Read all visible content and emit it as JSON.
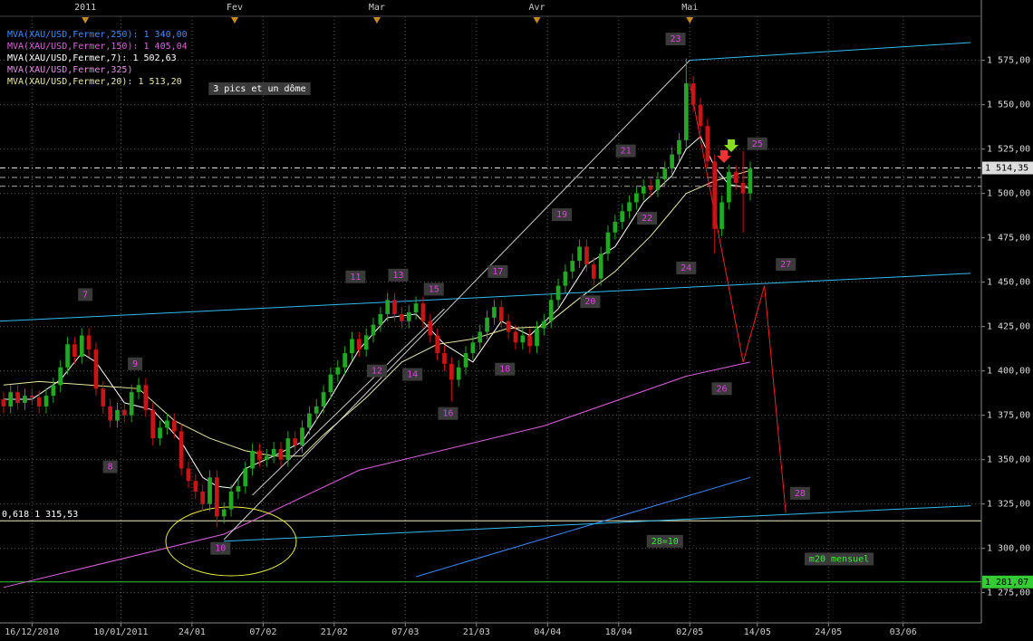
{
  "chart_data": {
    "type": "candlestick",
    "categories": [
      null,
      null,
      null,
      null,
      null,
      null,
      null,
      null,
      null,
      null,
      null,
      null,
      null,
      null,
      null,
      null,
      null,
      null,
      null,
      null,
      null,
      null,
      null,
      null,
      null,
      null,
      null,
      null,
      null,
      null,
      null,
      null,
      null,
      null,
      null,
      null,
      null,
      null,
      null,
      null,
      null,
      null,
      null,
      null,
      null,
      null,
      null,
      null,
      null,
      null,
      null,
      null,
      null,
      null,
      null,
      null,
      null,
      null,
      null,
      null,
      null,
      null,
      null,
      null,
      null,
      null,
      null,
      null,
      null,
      null,
      null,
      null,
      null,
      null,
      null,
      null,
      null,
      null,
      null,
      null,
      null,
      null,
      null,
      null,
      null,
      null,
      null,
      null,
      null,
      null,
      null,
      null,
      null,
      null,
      null,
      null,
      null,
      null,
      null,
      null,
      null,
      null,
      null,
      null,
      null,
      null
    ],
    "open": [
      1384,
      1380,
      1388,
      1382,
      1386,
      1385,
      1380,
      1386,
      1392,
      1402,
      1415,
      1408,
      1420,
      1412,
      1390,
      1380,
      1372,
      1378,
      1375,
      1388,
      1392,
      1378,
      1362,
      1368,
      1372,
      1366,
      1345,
      1338,
      1332,
      1325,
      1340,
      1318,
      1322,
      1332,
      1335,
      1345,
      1355,
      1350,
      1352,
      1356,
      1350,
      1362,
      1358,
      1368,
      1376,
      1380,
      1388,
      1398,
      1402,
      1410,
      1418,
      1412,
      1420,
      1426,
      1432,
      1440,
      1432,
      1428,
      1433,
      1438,
      1428,
      1420,
      1410,
      1404,
      1395,
      1402,
      1410,
      1416,
      1422,
      1430,
      1436,
      1428,
      1422,
      1416,
      1420,
      1414,
      1424,
      1428,
      1440,
      1448,
      1456,
      1462,
      1470,
      1460,
      1452,
      1466,
      1478,
      1484,
      1490,
      1495,
      1500,
      1504,
      1502,
      1508,
      1514,
      1522,
      1530,
      1562,
      1550,
      1538,
      1518,
      1480,
      1495,
      1512,
      1506,
      1500
    ],
    "high": [
      1388,
      1392,
      1392,
      1390,
      1390,
      1389,
      1390,
      1396,
      1406,
      1419,
      1419,
      1424,
      1424,
      1416,
      1394,
      1384,
      1382,
      1382,
      1392,
      1396,
      1396,
      1382,
      1372,
      1376,
      1376,
      1370,
      1349,
      1342,
      1336,
      1344,
      1344,
      1326,
      1336,
      1339,
      1349,
      1359,
      1359,
      1356,
      1360,
      1360,
      1366,
      1366,
      1372,
      1380,
      1384,
      1392,
      1402,
      1406,
      1414,
      1422,
      1422,
      1424,
      1430,
      1436,
      1444,
      1444,
      1436,
      1437,
      1442,
      1442,
      1432,
      1424,
      1414,
      1408,
      1406,
      1414,
      1420,
      1426,
      1434,
      1440,
      1440,
      1432,
      1426,
      1424,
      1424,
      1428,
      1432,
      1444,
      1452,
      1460,
      1466,
      1474,
      1474,
      1464,
      1470,
      1482,
      1488,
      1494,
      1499,
      1504,
      1508,
      1508,
      1512,
      1518,
      1526,
      1534,
      1576,
      1566,
      1554,
      1542,
      1522,
      1499,
      1516,
      1516,
      1524,
      1518
    ],
    "low": [
      1376,
      1376,
      1378,
      1378,
      1381,
      1376,
      1376,
      1382,
      1388,
      1398,
      1404,
      1404,
      1408,
      1386,
      1376,
      1368,
      1368,
      1371,
      1371,
      1384,
      1374,
      1358,
      1358,
      1364,
      1362,
      1341,
      1334,
      1328,
      1321,
      1321,
      1312,
      1314,
      1318,
      1328,
      1331,
      1341,
      1346,
      1346,
      1348,
      1346,
      1346,
      1354,
      1354,
      1364,
      1372,
      1376,
      1384,
      1394,
      1398,
      1406,
      1408,
      1408,
      1416,
      1422,
      1428,
      1428,
      1424,
      1424,
      1429,
      1424,
      1416,
      1406,
      1400,
      1383,
      1391,
      1398,
      1406,
      1412,
      1418,
      1426,
      1424,
      1418,
      1412,
      1412,
      1410,
      1410,
      1420,
      1424,
      1436,
      1444,
      1452,
      1458,
      1456,
      1448,
      1448,
      1462,
      1474,
      1480,
      1486,
      1491,
      1496,
      1498,
      1498,
      1504,
      1510,
      1518,
      1526,
      1546,
      1534,
      1514,
      1466,
      1476,
      1491,
      1502,
      1478,
      1496
    ],
    "close": [
      1380,
      1388,
      1382,
      1386,
      1385,
      1380,
      1386,
      1392,
      1402,
      1415,
      1408,
      1420,
      1412,
      1390,
      1380,
      1372,
      1378,
      1375,
      1388,
      1392,
      1378,
      1362,
      1368,
      1372,
      1366,
      1345,
      1338,
      1332,
      1325,
      1340,
      1318,
      1322,
      1332,
      1335,
      1345,
      1355,
      1350,
      1352,
      1356,
      1350,
      1362,
      1358,
      1368,
      1376,
      1380,
      1388,
      1398,
      1402,
      1410,
      1418,
      1412,
      1420,
      1426,
      1432,
      1440,
      1432,
      1428,
      1433,
      1438,
      1428,
      1420,
      1410,
      1404,
      1395,
      1402,
      1410,
      1416,
      1422,
      1430,
      1436,
      1428,
      1422,
      1416,
      1420,
      1414,
      1424,
      1428,
      1440,
      1448,
      1456,
      1462,
      1470,
      1460,
      1452,
      1466,
      1478,
      1484,
      1490,
      1495,
      1500,
      1504,
      1502,
      1508,
      1514,
      1522,
      1530,
      1562,
      1550,
      1538,
      1518,
      1480,
      1495,
      1512,
      1506,
      1500,
      1514
    ],
    "up_color": "#22a822",
    "down_color": "#c81414",
    "xlim": [
      -0.5,
      137.5
    ],
    "ylim": [
      1258,
      1609
    ],
    "grid": true,
    "xticks": [
      {
        "value": 4,
        "label": "16/12/2010"
      },
      {
        "value": 16.5,
        "label": "10/01/2011"
      },
      {
        "value": 26.5,
        "label": "24/01"
      },
      {
        "value": 36.5,
        "label": "07/02"
      },
      {
        "value": 46.5,
        "label": "21/02"
      },
      {
        "value": 56.5,
        "label": "07/03"
      },
      {
        "value": 66.5,
        "label": "21/03"
      },
      {
        "value": 76.5,
        "label": "04/04"
      },
      {
        "value": 86.5,
        "label": "18/04"
      },
      {
        "value": 96.5,
        "label": "02/05"
      },
      {
        "value": 106,
        "label": "14/05"
      },
      {
        "value": 116,
        "label": "24/05"
      },
      {
        "value": 126.5,
        "label": "03/06"
      }
    ],
    "top_xticks": [
      {
        "value": 11.5,
        "label": "2011"
      },
      {
        "value": 32.5,
        "label": "Fev"
      },
      {
        "value": 52.5,
        "label": "Mar"
      },
      {
        "value": 75,
        "label": "Avr"
      },
      {
        "value": 96.5,
        "label": "Mai"
      }
    ],
    "yticks": [
      {
        "value": 1275,
        "label": "1 275,00"
      },
      {
        "value": 1300,
        "label": "1 300,00"
      },
      {
        "value": 1325,
        "label": "1 325,00"
      },
      {
        "value": 1350,
        "label": "1 350,00"
      },
      {
        "value": 1375,
        "label": "1 375,00"
      },
      {
        "value": 1400,
        "label": "1 400,00"
      },
      {
        "value": 1425,
        "label": "1 425,00"
      },
      {
        "value": 1450,
        "label": "1 450,00"
      },
      {
        "value": 1475,
        "label": "1 475,00"
      },
      {
        "value": 1500,
        "label": "1 500,00"
      },
      {
        "value": 1525,
        "label": "1 525,00"
      },
      {
        "value": 1550,
        "label": "1 550,00"
      },
      {
        "value": 1575,
        "label": "1 575,00"
      }
    ],
    "series": [
      {
        "name": "MVA(XAU/USD,Fermer,250): 1 340,00",
        "color": "#3c8cff",
        "x": [
          58,
          105
        ],
        "values": [
          1284,
          1340
        ]
      },
      {
        "name": "MVA(XAU/USD,Fermer,150): 1 405,04",
        "color": "#e060e0",
        "x": [
          0,
          31,
          50,
          76,
          96,
          105
        ],
        "values": [
          1278,
          1308,
          1344,
          1369,
          1397,
          1405
        ]
      },
      {
        "name": "MVA(XAU/USD,Fermer,7): 1 502,63",
        "color": "#ffffff",
        "x": [
          0,
          4,
          8,
          11,
          13,
          17,
          21,
          25,
          28,
          30,
          32,
          34,
          38,
          42,
          46,
          50,
          54,
          58,
          62,
          66,
          70,
          74,
          78,
          82,
          86,
          90,
          94,
          96,
          98,
          100,
          102,
          105
        ],
        "values": [
          1384,
          1384,
          1395,
          1410,
          1405,
          1382,
          1378,
          1360,
          1340,
          1335,
          1334,
          1345,
          1352,
          1360,
          1385,
          1412,
          1430,
          1432,
          1415,
          1405,
          1428,
          1420,
          1435,
          1460,
          1470,
          1495,
          1510,
          1525,
          1532,
          1515,
          1505,
          1503
        ]
      },
      {
        "name": "MVA(XAU/USD,Fermer,325)",
        "color": "#e890e8",
        "x": [],
        "values": []
      },
      {
        "name": "MVA(XAU/USD,Fermer,20): 1 513,20",
        "color": "#e8e8a0",
        "x": [
          0,
          5,
          12,
          19,
          24,
          29,
          34,
          38,
          42,
          45,
          51,
          56,
          61,
          66,
          71,
          76,
          81,
          86,
          91,
          96,
          100,
          105
        ],
        "values": [
          1392,
          1394,
          1392,
          1390,
          1372,
          1362,
          1355,
          1352,
          1352,
          1364,
          1385,
          1405,
          1415,
          1418,
          1424,
          1425,
          1441,
          1456,
          1476,
          1500,
          1507,
          1513
        ]
      }
    ],
    "trendlines": [
      {
        "color": "#33bbee",
        "x": [
          -0.5,
          136
        ],
        "y": [
          1428,
          1455
        ]
      },
      {
        "color": "#33bbee",
        "x": [
          96.5,
          136
        ],
        "y": [
          1575,
          1585
        ]
      },
      {
        "color": "#33bbee",
        "x": [
          31,
          136
        ],
        "y": [
          1304,
          1324
        ]
      },
      {
        "color": "#cccccc",
        "x": [
          31,
          96.5
        ],
        "y": [
          1305,
          1575
        ]
      },
      {
        "color": "#cccccc",
        "x": [
          35,
          62
        ],
        "y": [
          1330,
          1435
        ]
      },
      {
        "color": "#ee2222",
        "x": [
          96.5,
          104,
          107,
          110
        ],
        "y": [
          1562,
          1405,
          1448,
          1320
        ]
      }
    ],
    "levels": [
      {
        "value": 1315.53,
        "label": "0,618 1 315,53",
        "color": "#f0f0c0"
      },
      {
        "value": 1281.07,
        "tag": "1 281,07",
        "color": "#33cc33"
      },
      {
        "value": 1514.35,
        "tag": "1 514,35",
        "color": "#dddddd",
        "dash": true
      },
      {
        "value": 1509,
        "color": "#aaaaaa",
        "dash": true
      },
      {
        "value": 1504,
        "color": "#aaaaaa",
        "dash": true
      }
    ],
    "annotation_color": "#e040e0",
    "annotations": [
      {
        "text": "23",
        "x": 94.5,
        "y": 1587
      },
      {
        "text": "25",
        "x": 106,
        "y": 1528
      },
      {
        "text": "21",
        "x": 87.5,
        "y": 1524
      },
      {
        "text": "19",
        "x": 78.5,
        "y": 1488
      },
      {
        "text": "22",
        "x": 90.5,
        "y": 1486
      },
      {
        "text": "24",
        "x": 96,
        "y": 1458
      },
      {
        "text": "27",
        "x": 110,
        "y": 1460
      },
      {
        "text": "11",
        "x": 49.5,
        "y": 1453
      },
      {
        "text": "13",
        "x": 55.5,
        "y": 1454
      },
      {
        "text": "15",
        "x": 60.5,
        "y": 1446
      },
      {
        "text": "17",
        "x": 69.5,
        "y": 1456
      },
      {
        "text": "20",
        "x": 82.5,
        "y": 1439
      },
      {
        "text": "7",
        "x": 11.5,
        "y": 1443
      },
      {
        "text": "9",
        "x": 18.5,
        "y": 1404
      },
      {
        "text": "12",
        "x": 52.5,
        "y": 1400
      },
      {
        "text": "14",
        "x": 57.5,
        "y": 1398
      },
      {
        "text": "18",
        "x": 70.5,
        "y": 1401
      },
      {
        "text": "16",
        "x": 62.5,
        "y": 1376
      },
      {
        "text": "26",
        "x": 101,
        "y": 1390
      },
      {
        "text": "8",
        "x": 15,
        "y": 1346
      },
      {
        "text": "28",
        "x": 112,
        "y": 1331
      },
      {
        "text": "10",
        "x": 30.5,
        "y": 1300
      },
      {
        "text": "28=10",
        "x": 93,
        "y": 1304,
        "color": "#33ee33"
      },
      {
        "text": "m20 mensuel",
        "x": 117.5,
        "y": 1294,
        "color": "#33ee33"
      },
      {
        "text": "3 pics et un dôme",
        "x": 36,
        "y": 1559,
        "color": "#ffffff"
      }
    ]
  }
}
